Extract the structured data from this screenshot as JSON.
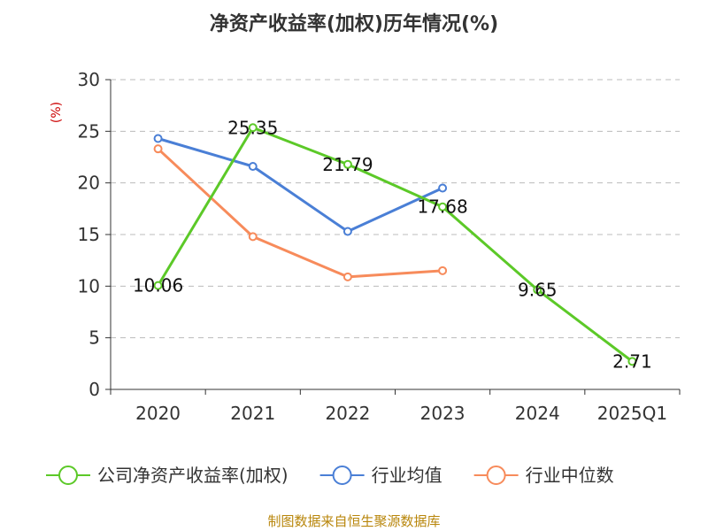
{
  "chart_data": {
    "type": "line",
    "title": "净资产收益率(加权)历年情况(%)",
    "ylabel": "(%)",
    "categories": [
      "2020",
      "2021",
      "2022",
      "2023",
      "2024",
      "2025Q1"
    ],
    "ylim": [
      0,
      30
    ],
    "yticks": [
      0,
      5,
      10,
      15,
      20,
      25,
      30
    ],
    "grid": true,
    "legend_position": "bottom",
    "series": [
      {
        "name": "公司净资产收益率(加权)",
        "color": "#5cc928",
        "values": [
          10.06,
          25.35,
          21.79,
          17.68,
          9.65,
          2.71
        ],
        "labels": [
          "10.06",
          "25.35",
          "21.79",
          "17.68",
          "9.65",
          "2.71"
        ]
      },
      {
        "name": "行业均值",
        "color": "#4a7fd6",
        "values": [
          24.3,
          21.6,
          15.3,
          19.5,
          null,
          null
        ]
      },
      {
        "name": "行业中位数",
        "color": "#f78b5b",
        "values": [
          23.3,
          14.8,
          10.9,
          11.5,
          null,
          null
        ]
      }
    ]
  },
  "source": "制图数据来自恒生聚源数据库"
}
